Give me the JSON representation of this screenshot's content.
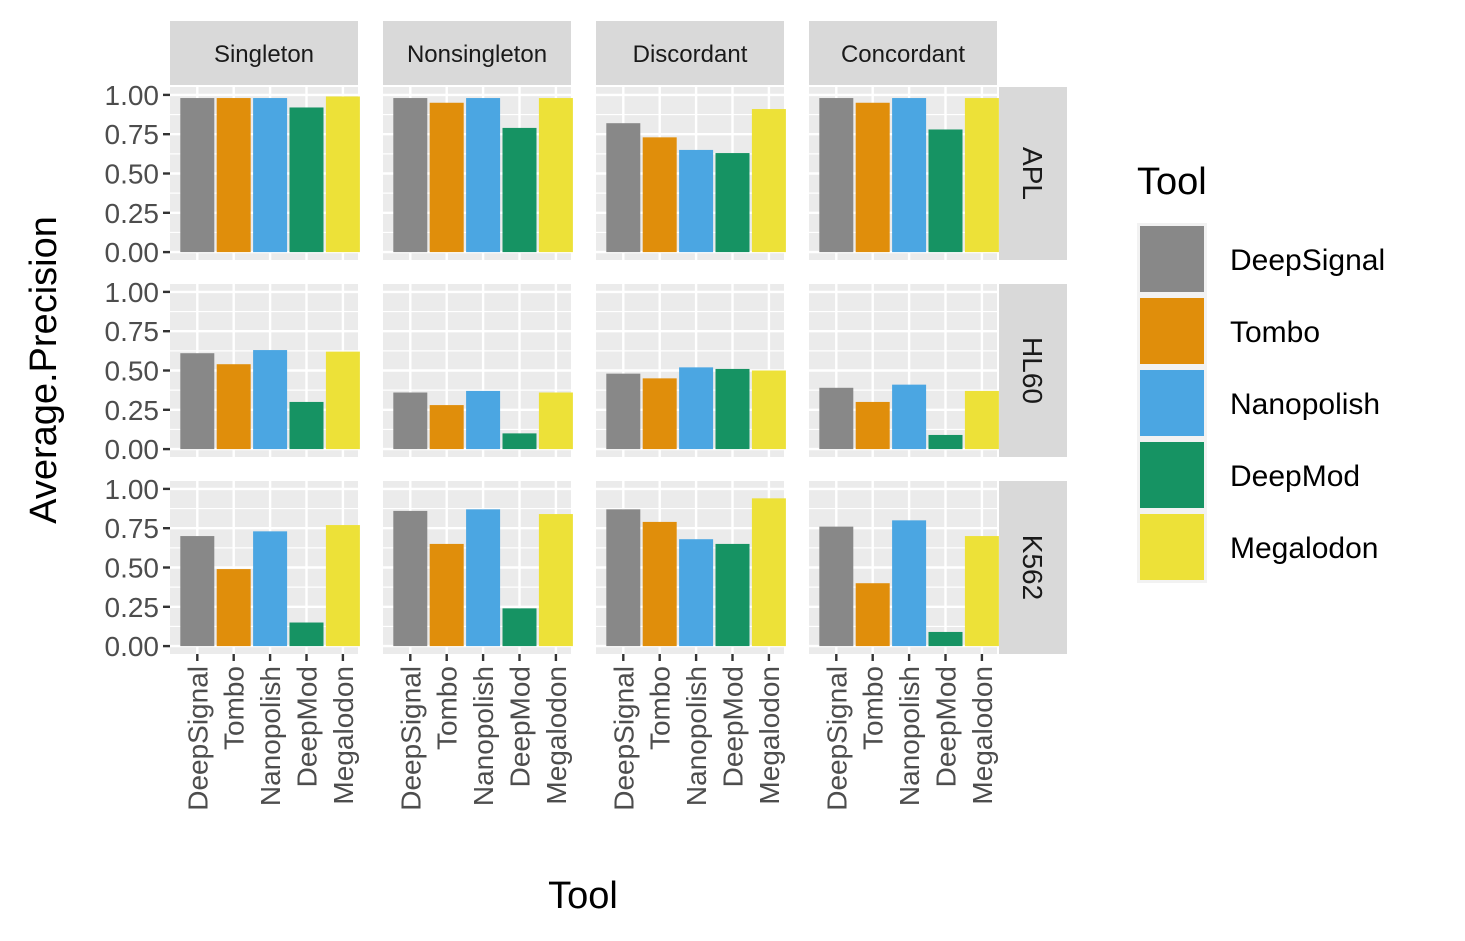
{
  "chart_data": {
    "type": "bar",
    "xlabel": "Tool",
    "ylabel": "Average.Precision",
    "ylim": [
      0,
      1
    ],
    "yticks": [
      "0.00",
      "0.25",
      "0.50",
      "0.75",
      "1.00"
    ],
    "ytick_values": [
      0,
      0.25,
      0.5,
      0.75,
      1.0
    ],
    "categories": [
      "DeepSignal",
      "Tombo",
      "Nanopolish",
      "DeepMod",
      "Megalodon"
    ],
    "col_facets": [
      "Singleton",
      "Nonsingleton",
      "Discordant",
      "Concordant"
    ],
    "row_facets": [
      "APL",
      "HL60",
      "K562"
    ],
    "grid": true,
    "legend": {
      "title": "Tool",
      "position": "right",
      "entries": [
        "DeepSignal",
        "Tombo",
        "Nanopolish",
        "DeepMod",
        "Megalodon"
      ]
    },
    "colors": {
      "DeepSignal": "#888888",
      "Tombo": "#E08E0B",
      "Nanopolish": "#4BA6E2",
      "DeepMod": "#169363",
      "Megalodon": "#EDE138"
    },
    "values": {
      "APL": {
        "Singleton": [
          0.98,
          0.98,
          0.98,
          0.92,
          0.99
        ],
        "Nonsingleton": [
          0.98,
          0.95,
          0.98,
          0.79,
          0.98
        ],
        "Discordant": [
          0.82,
          0.73,
          0.65,
          0.63,
          0.91
        ],
        "Concordant": [
          0.98,
          0.95,
          0.98,
          0.78,
          0.98
        ]
      },
      "HL60": {
        "Singleton": [
          0.61,
          0.54,
          0.63,
          0.3,
          0.62
        ],
        "Nonsingleton": [
          0.36,
          0.28,
          0.37,
          0.1,
          0.36
        ],
        "Discordant": [
          0.48,
          0.45,
          0.52,
          0.51,
          0.5
        ],
        "Concordant": [
          0.39,
          0.3,
          0.41,
          0.09,
          0.37
        ]
      },
      "K562": {
        "Singleton": [
          0.7,
          0.49,
          0.73,
          0.15,
          0.77
        ],
        "Nonsingleton": [
          0.86,
          0.65,
          0.87,
          0.24,
          0.84
        ],
        "Discordant": [
          0.87,
          0.79,
          0.68,
          0.65,
          0.94
        ],
        "Concordant": [
          0.76,
          0.4,
          0.8,
          0.09,
          0.7
        ]
      }
    }
  }
}
